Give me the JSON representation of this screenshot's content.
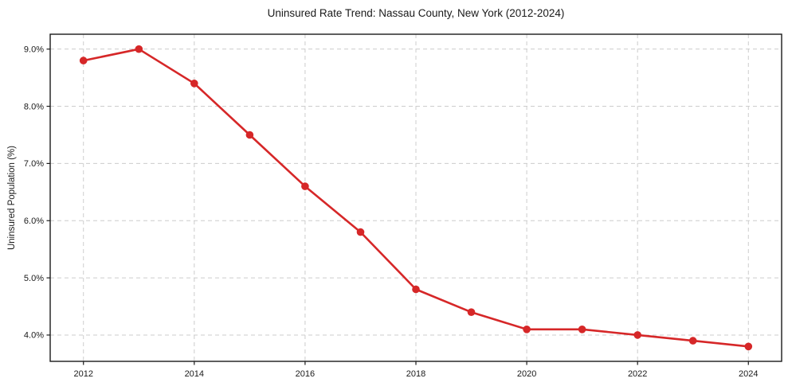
{
  "chart_data": {
    "type": "line",
    "title": "Uninsured Rate Trend: Nassau County, New York (2012-2024)",
    "xlabel": "",
    "ylabel": "Uninsured Population (%)",
    "x": [
      2012,
      2013,
      2014,
      2015,
      2016,
      2017,
      2018,
      2019,
      2020,
      2021,
      2022,
      2023,
      2024
    ],
    "values": [
      8.8,
      9.0,
      8.4,
      7.5,
      6.6,
      5.8,
      4.8,
      4.4,
      4.1,
      4.1,
      4.0,
      3.9,
      3.8
    ],
    "x_ticks": [
      2012,
      2014,
      2016,
      2018,
      2020,
      2022,
      2024
    ],
    "x_tick_labels": [
      "2012",
      "2014",
      "2016",
      "2018",
      "2020",
      "2022",
      "2024"
    ],
    "y_ticks": [
      4.0,
      5.0,
      6.0,
      7.0,
      8.0,
      9.0
    ],
    "y_tick_labels": [
      "4.0%",
      "5.0%",
      "6.0%",
      "7.0%",
      "8.0%",
      "9.0%"
    ],
    "xlim": [
      2011.4,
      2024.6
    ],
    "ylim": [
      3.54,
      9.26
    ],
    "grid": true,
    "grid_style": "dashed",
    "legend": "none",
    "line_color": "#d62728",
    "marker": "circle",
    "grid_color": "#cccccc",
    "axis_color": "#1a1a1a",
    "text_color": "#1a1a1a",
    "background_color": "#ffffff"
  }
}
